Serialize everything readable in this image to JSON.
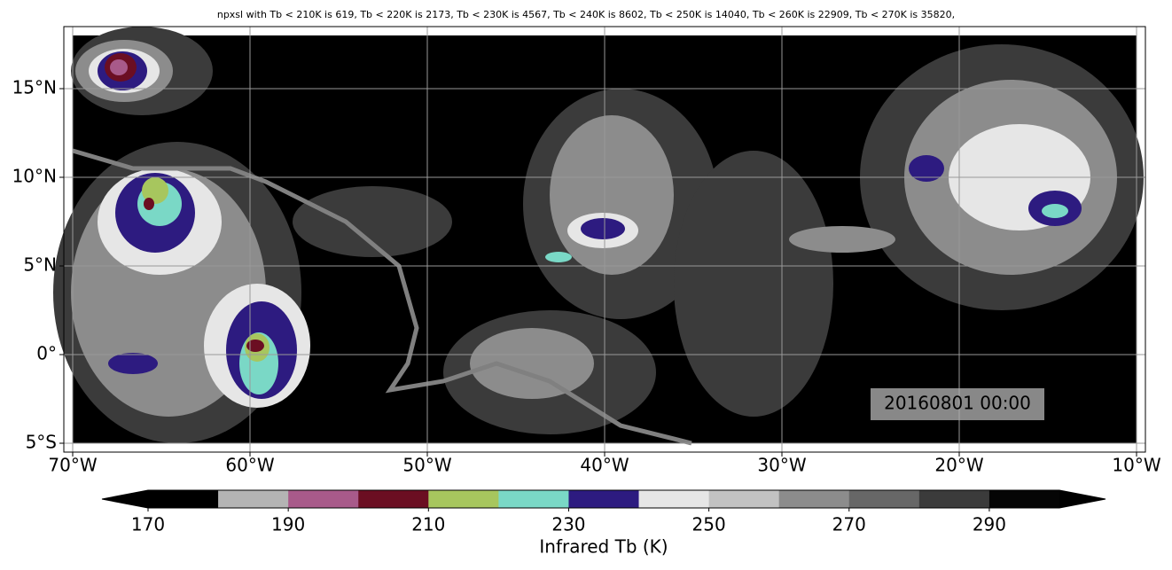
{
  "chart_data": {
    "type": "contour",
    "title": "npxsl with Tb < 210K is 619,  Tb < 220K is 2173,  Tb < 230K is 4567,  Tb < 240K is 8602,  Tb < 250K is 14040,  Tb < 260K is 22909,  Tb < 270K is 35820,",
    "xlim": [
      -70.5,
      -9.5
    ],
    "ylim": [
      -5.5,
      18.5
    ],
    "xticks": [
      {
        "value": -70,
        "label": "70°W"
      },
      {
        "value": -60,
        "label": "60°W"
      },
      {
        "value": -50,
        "label": "50°W"
      },
      {
        "value": -40,
        "label": "40°W"
      },
      {
        "value": -30,
        "label": "30°W"
      },
      {
        "value": -20,
        "label": "20°W"
      },
      {
        "value": -10,
        "label": "10°W"
      }
    ],
    "yticks": [
      {
        "value": -5,
        "label": "5°S"
      },
      {
        "value": 0,
        "label": "0°"
      },
      {
        "value": 5,
        "label": "5°N"
      },
      {
        "value": 10,
        "label": "10°N"
      },
      {
        "value": 15,
        "label": "15°N"
      }
    ],
    "grid": true,
    "annotation": "20160801 00:00",
    "colorbar": {
      "label": "Infrared Tb (K)",
      "levels": [
        170,
        180,
        190,
        200,
        210,
        220,
        230,
        240,
        250,
        260,
        270,
        280,
        290,
        300
      ],
      "colors": [
        "#000000",
        "#b4b4b4",
        "#a85a8a",
        "#6b0e22",
        "#a7c65e",
        "#7ad8c6",
        "#2d1b80",
        "#e6e6e6",
        "#c2c2c2",
        "#8c8c8c",
        "#676767",
        "#3b3b3b",
        "#050505"
      ],
      "under_color": "#000000",
      "over_color": "#000000",
      "ticks": [
        170,
        190,
        210,
        230,
        250,
        270,
        290
      ]
    }
  }
}
